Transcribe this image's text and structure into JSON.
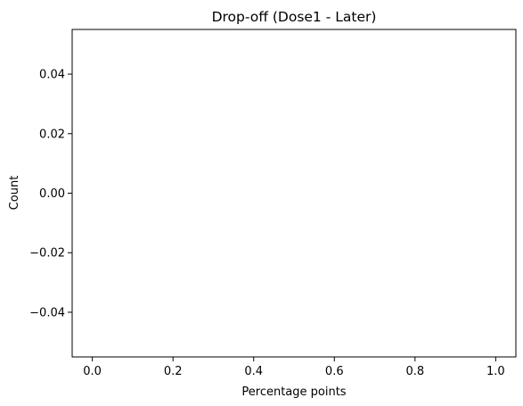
{
  "chart_data": {
    "type": "bar",
    "title": "Drop-off (Dose1 - Later)",
    "xlabel": "Percentage points",
    "ylabel": "Count",
    "values": [],
    "xlim": [
      -0.05,
      1.05
    ],
    "ylim": [
      -0.055,
      0.055
    ],
    "xticks": [
      0.0,
      0.2,
      0.4,
      0.6,
      0.8,
      1.0
    ],
    "xtick_labels": [
      "0.0",
      "0.2",
      "0.4",
      "0.6",
      "0.8",
      "1.0"
    ],
    "yticks": [
      -0.04,
      -0.02,
      0.0,
      0.02,
      0.04
    ],
    "ytick_labels": [
      "−0.04",
      "−0.02",
      "0.00",
      "0.02",
      "0.04"
    ],
    "grid": false,
    "legend": false
  }
}
